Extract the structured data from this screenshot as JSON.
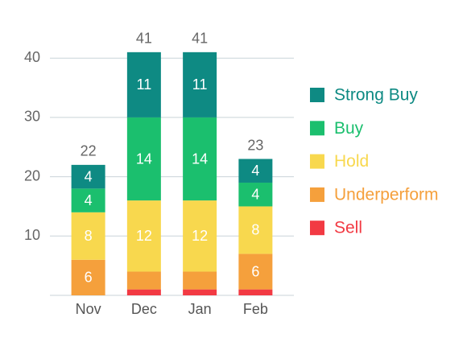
{
  "chart_data": {
    "type": "stacked-bar",
    "categories": [
      "Nov",
      "Dec",
      "Jan",
      "Feb"
    ],
    "series": [
      {
        "name": "Sell",
        "color": "#f23a43",
        "values": [
          0,
          1,
          1,
          1
        ]
      },
      {
        "name": "Underperform",
        "color": "#f5a03c",
        "values": [
          6,
          3,
          3,
          6
        ]
      },
      {
        "name": "Hold",
        "color": "#f8d84e",
        "values": [
          8,
          12,
          12,
          8
        ]
      },
      {
        "name": "Buy",
        "color": "#1bbf6e",
        "values": [
          4,
          14,
          14,
          4
        ]
      },
      {
        "name": "Strong Buy",
        "color": "#0e8a83",
        "values": [
          4,
          11,
          11,
          4
        ]
      }
    ],
    "total_labels": [
      22,
      41,
      41,
      23
    ],
    "ylim": [
      0,
      46
    ],
    "yticks": [
      10,
      20,
      30,
      40
    ],
    "grid": true,
    "legend": "right"
  }
}
